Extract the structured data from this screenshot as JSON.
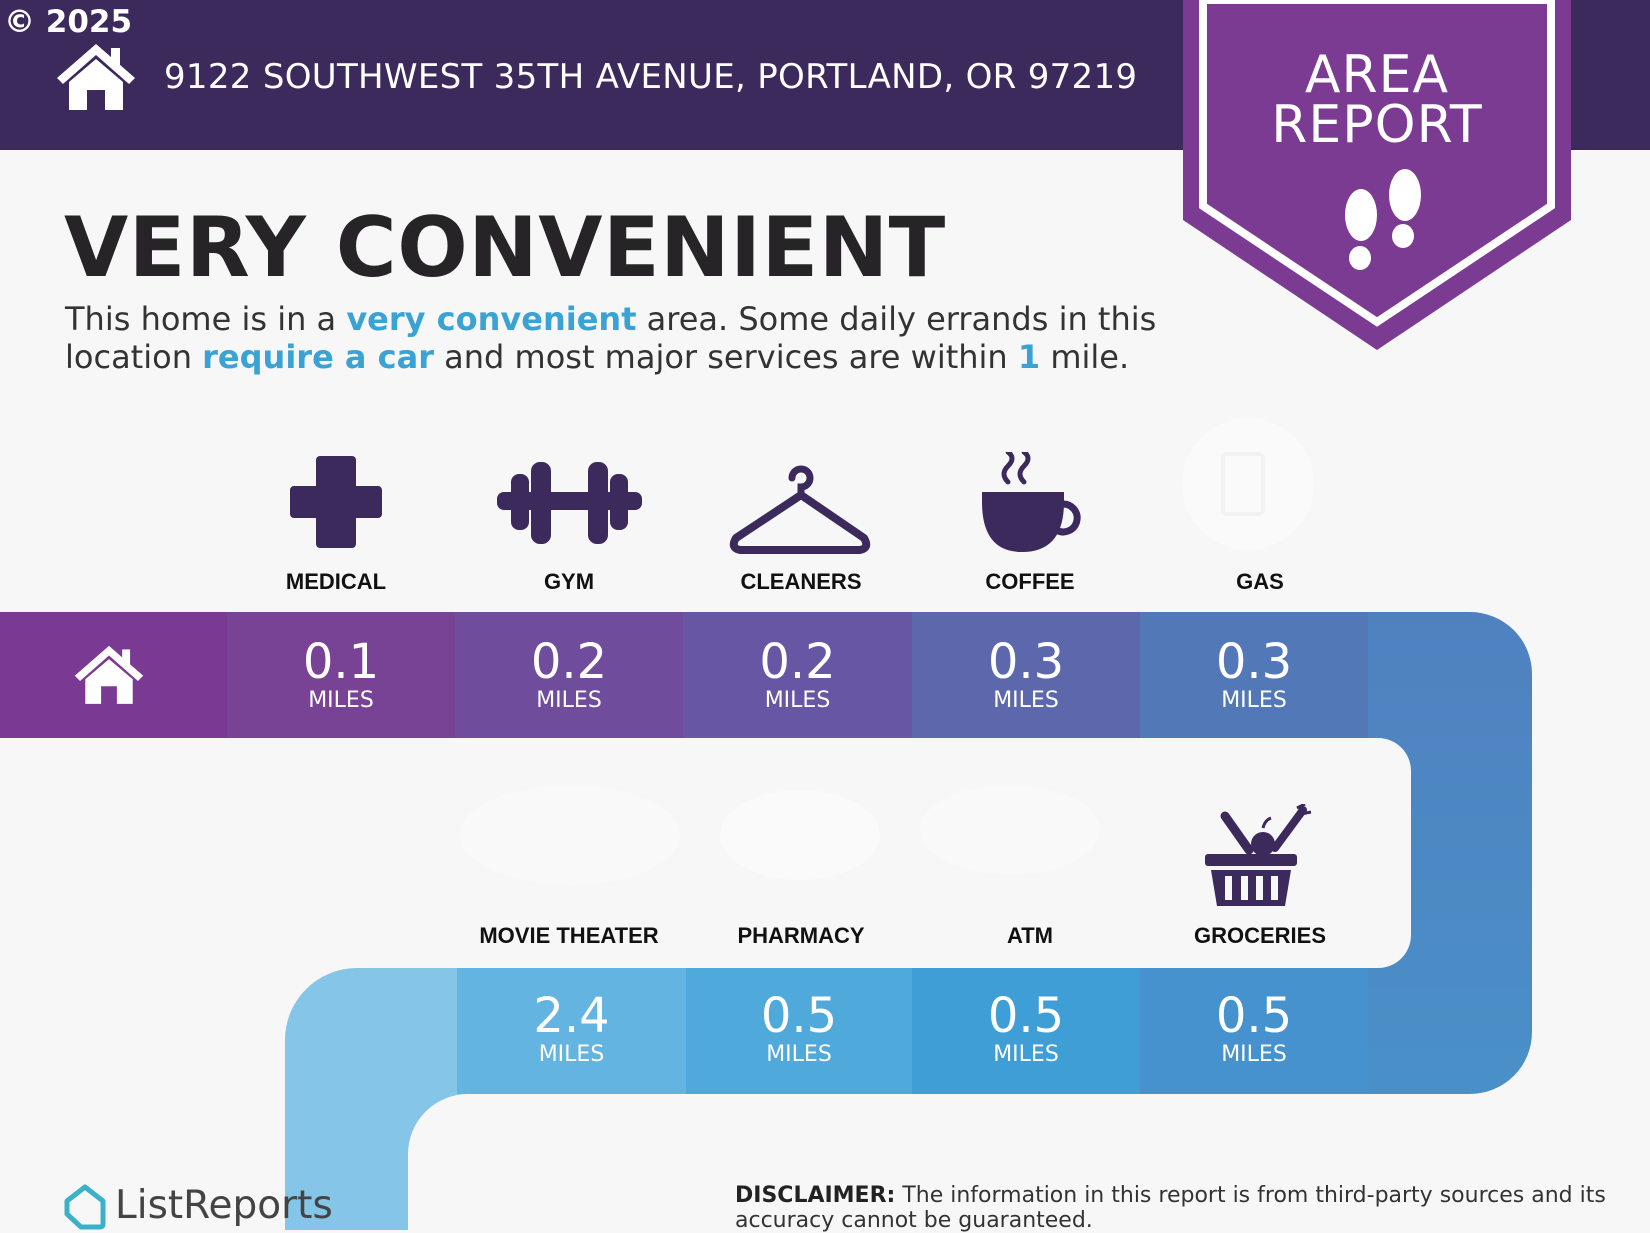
{
  "header": {
    "copyright": "© 2025",
    "address": "9122 SOUTHWEST 35TH AVENUE, PORTLAND, OR 97219",
    "badge_line1": "AREA",
    "badge_line2": "REPORT"
  },
  "summary": {
    "headline": "VERY CONVENIENT",
    "desc_1": "This home is in a ",
    "desc_hl_1": "very convenient",
    "desc_2": " area. Some daily errands in this location ",
    "desc_hl_2": "require a car",
    "desc_3": " and most major services are within ",
    "desc_hl_3": "1",
    "desc_4": " mile."
  },
  "services_top": [
    {
      "label": "MEDICAL",
      "distance": "0.1",
      "unit": "MILES",
      "icon": "medical-cross-icon"
    },
    {
      "label": "GYM",
      "distance": "0.2",
      "unit": "MILES",
      "icon": "dumbbell-icon"
    },
    {
      "label": "CLEANERS",
      "distance": "0.2",
      "unit": "MILES",
      "icon": "hanger-icon"
    },
    {
      "label": "COFFEE",
      "distance": "0.3",
      "unit": "MILES",
      "icon": "coffee-cup-icon"
    },
    {
      "label": "GAS",
      "distance": "0.3",
      "unit": "MILES",
      "icon": "gas-pump-icon"
    }
  ],
  "services_bottom": [
    {
      "label": "MOVIE THEATER",
      "distance": "2.4",
      "unit": "MILES",
      "icon": "movie-icon"
    },
    {
      "label": "PHARMACY",
      "distance": "0.5",
      "unit": "MILES",
      "icon": "pharmacy-icon"
    },
    {
      "label": "ATM",
      "distance": "0.5",
      "unit": "MILES",
      "icon": "atm-icon"
    },
    {
      "label": "GROCERIES",
      "distance": "0.5",
      "unit": "MILES",
      "icon": "grocery-basket-icon"
    }
  ],
  "footer": {
    "logo": "ListReports",
    "disclaimer_label": "DISCLAIMER:",
    "disclaimer_text": " The information in this report is from third-party sources and its accuracy cannot be guaranteed."
  },
  "colors": {
    "header_bg": "#3d2a5c",
    "badge": "#7b3b93",
    "icon": "#3d2a5c",
    "highlight": "#3ba3d4"
  }
}
